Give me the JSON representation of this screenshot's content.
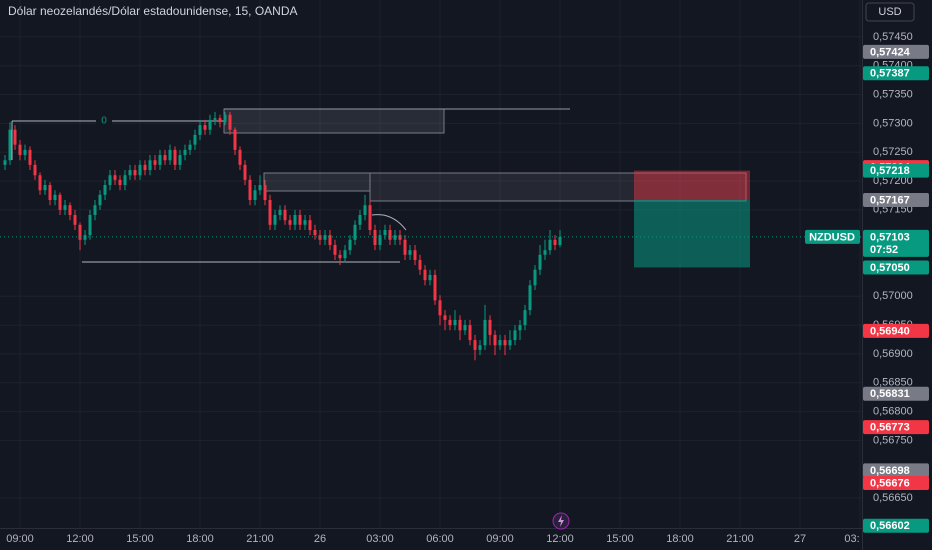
{
  "chart_data": {
    "type": "candlestick",
    "title": "Dólar neozelandés/Dólar estadounidense, 15, OANDA",
    "currency": "USD",
    "up_color": "#089981",
    "down_color": "#f23645",
    "grid": true,
    "ylim": [
      0.56598,
      0.57514
    ],
    "yticks": [
      {
        "value": 0.5745,
        "label": "0,57450"
      },
      {
        "value": 0.574,
        "label": "0,57400"
      },
      {
        "value": 0.5735,
        "label": "0,57350"
      },
      {
        "value": 0.573,
        "label": "0,57300"
      },
      {
        "value": 0.5725,
        "label": "0,57250"
      },
      {
        "value": 0.572,
        "label": "0,57200"
      },
      {
        "value": 0.5715,
        "label": "0,57150"
      },
      {
        "value": 0.57,
        "label": "0,57000"
      },
      {
        "value": 0.5695,
        "label": "0,56950"
      },
      {
        "value": 0.569,
        "label": "0,56900"
      },
      {
        "value": 0.5685,
        "label": "0,56850"
      },
      {
        "value": 0.568,
        "label": "0,56800"
      },
      {
        "value": 0.5675,
        "label": "0,56750"
      },
      {
        "value": 0.5665,
        "label": "0,56650"
      }
    ],
    "xlim": [
      -1,
      171.4
    ],
    "xticks": [
      {
        "value": 3,
        "label": "09:00"
      },
      {
        "value": 15,
        "label": "12:00"
      },
      {
        "value": 27,
        "label": "15:00"
      },
      {
        "value": 39,
        "label": "18:00"
      },
      {
        "value": 51,
        "label": "21:00"
      },
      {
        "value": 63,
        "label": "26"
      },
      {
        "value": 75,
        "label": "03:00"
      },
      {
        "value": 87,
        "label": "06:00"
      },
      {
        "value": 99,
        "label": "09:00"
      },
      {
        "value": 111,
        "label": "12:00"
      },
      {
        "value": 123,
        "label": "15:00"
      },
      {
        "value": 135,
        "label": "18:00"
      },
      {
        "value": 147,
        "label": "21:00"
      },
      {
        "value": 159,
        "label": "27"
      },
      {
        "value": 171,
        "label": "03:"
      }
    ],
    "candles": {
      "open": [
        0.57228,
        0.57236,
        0.57289,
        0.57263,
        0.57245,
        0.57254,
        0.57228,
        0.5721,
        0.57184,
        0.57193,
        0.57167,
        0.57176,
        0.5715,
        0.57158,
        0.57141,
        0.57124,
        0.57098,
        0.57106,
        0.57141,
        0.57158,
        0.57176,
        0.57193,
        0.5721,
        0.57202,
        0.57193,
        0.5721,
        0.57219,
        0.5721,
        0.57228,
        0.57219,
        0.57236,
        0.57228,
        0.57245,
        0.57236,
        0.57254,
        0.57228,
        0.57245,
        0.57254,
        0.57263,
        0.5728,
        0.57297,
        0.57289,
        0.57306,
        0.57309,
        0.57302,
        0.57315,
        0.57289,
        0.57254,
        0.57228,
        0.57202,
        0.57167,
        0.57184,
        0.57193,
        0.57167,
        0.57124,
        0.57141,
        0.5715,
        0.57132,
        0.57124,
        0.57141,
        0.57124,
        0.57132,
        0.57115,
        0.57106,
        0.57098,
        0.57106,
        0.57089,
        0.57072,
        0.57066,
        0.5708,
        0.57098,
        0.57124,
        0.57141,
        0.57158,
        0.57115,
        0.57089,
        0.57106,
        0.57115,
        0.57098,
        0.57106,
        0.57098,
        0.57072,
        0.5708,
        0.57063,
        0.57046,
        0.57028,
        0.57037,
        0.56993,
        0.56967,
        0.56959,
        0.5695,
        0.56959,
        0.56941,
        0.5695,
        0.56924,
        0.56907,
        0.56915,
        0.56959,
        0.56933,
        0.56915,
        0.56924,
        0.56915,
        0.56924,
        0.56941,
        0.5695,
        0.56976,
        0.57019,
        0.57046,
        0.57072,
        0.5708,
        0.57098,
        0.57089
      ],
      "high": [
        0.57245,
        0.57302,
        0.57297,
        0.57271,
        0.57263,
        0.5726,
        0.57236,
        0.57215,
        0.57202,
        0.57198,
        0.57184,
        0.5718,
        0.57167,
        0.57163,
        0.5715,
        0.57128,
        0.57115,
        0.5715,
        0.57167,
        0.57184,
        0.57202,
        0.57219,
        0.57219,
        0.5721,
        0.57219,
        0.57228,
        0.57228,
        0.57236,
        0.57236,
        0.57245,
        0.57245,
        0.57254,
        0.57254,
        0.57263,
        0.5726,
        0.57254,
        0.57263,
        0.57271,
        0.57289,
        0.57306,
        0.57306,
        0.57315,
        0.5732,
        0.57315,
        0.5732,
        0.5732,
        0.57293,
        0.5726,
        0.57236,
        0.5721,
        0.57193,
        0.5721,
        0.57202,
        0.57176,
        0.5715,
        0.57158,
        0.57158,
        0.57141,
        0.5715,
        0.5715,
        0.57141,
        0.57141,
        0.57124,
        0.57115,
        0.57115,
        0.57115,
        0.57098,
        0.5708,
        0.57089,
        0.57106,
        0.57132,
        0.5715,
        0.57176,
        0.57167,
        0.57124,
        0.57115,
        0.57124,
        0.57124,
        0.57115,
        0.57115,
        0.57106,
        0.57089,
        0.57089,
        0.57072,
        0.57054,
        0.57046,
        0.57046,
        0.57002,
        0.56976,
        0.56967,
        0.56976,
        0.56967,
        0.56959,
        0.56959,
        0.56933,
        0.56924,
        0.56985,
        0.56967,
        0.56941,
        0.56933,
        0.56933,
        0.56941,
        0.5695,
        0.56959,
        0.56985,
        0.57028,
        0.57054,
        0.57089,
        0.57098,
        0.57115,
        0.57106,
        0.57115
      ],
      "low": [
        0.57219,
        0.57228,
        0.57254,
        0.57236,
        0.57236,
        0.57219,
        0.57202,
        0.57176,
        0.57176,
        0.57158,
        0.57158,
        0.57141,
        0.57141,
        0.57132,
        0.57115,
        0.5708,
        0.57089,
        0.57098,
        0.57132,
        0.5715,
        0.57167,
        0.57184,
        0.57193,
        0.57184,
        0.57184,
        0.57202,
        0.57202,
        0.57202,
        0.5721,
        0.5721,
        0.57219,
        0.57219,
        0.57228,
        0.57228,
        0.57219,
        0.57219,
        0.57236,
        0.57245,
        0.57254,
        0.57271,
        0.5728,
        0.5728,
        0.57297,
        0.57293,
        0.57297,
        0.5728,
        0.57245,
        0.57219,
        0.57193,
        0.57158,
        0.57158,
        0.57176,
        0.57158,
        0.57115,
        0.57115,
        0.57132,
        0.57124,
        0.57115,
        0.57115,
        0.57115,
        0.57115,
        0.57106,
        0.57098,
        0.57089,
        0.57089,
        0.5708,
        0.57063,
        0.57054,
        0.57059,
        0.57072,
        0.57089,
        0.57115,
        0.57132,
        0.57106,
        0.5708,
        0.5708,
        0.57098,
        0.57089,
        0.57089,
        0.57089,
        0.57063,
        0.57063,
        0.57054,
        0.57037,
        0.57019,
        0.57019,
        0.56985,
        0.5695,
        0.56941,
        0.56941,
        0.56941,
        0.56924,
        0.56933,
        0.56915,
        0.56889,
        0.56898,
        0.56907,
        0.56915,
        0.56898,
        0.56907,
        0.56898,
        0.56907,
        0.56915,
        0.56924,
        0.56941,
        0.56967,
        0.57011,
        0.57037,
        0.57063,
        0.57072,
        0.5708,
        0.57085
      ],
      "close": [
        0.57236,
        0.57289,
        0.57263,
        0.57245,
        0.57254,
        0.57228,
        0.5721,
        0.57184,
        0.57193,
        0.57167,
        0.57176,
        0.5715,
        0.57158,
        0.57141,
        0.57124,
        0.57098,
        0.57106,
        0.57141,
        0.57158,
        0.57176,
        0.57193,
        0.5721,
        0.57202,
        0.57193,
        0.5721,
        0.57219,
        0.5721,
        0.57228,
        0.57219,
        0.57236,
        0.57228,
        0.57245,
        0.57236,
        0.57254,
        0.57228,
        0.57245,
        0.57254,
        0.57263,
        0.5728,
        0.57297,
        0.57289,
        0.57306,
        0.57309,
        0.57302,
        0.57315,
        0.57289,
        0.57254,
        0.57228,
        0.57202,
        0.57167,
        0.57184,
        0.57193,
        0.57167,
        0.57124,
        0.57141,
        0.5715,
        0.57132,
        0.57124,
        0.57141,
        0.57124,
        0.57132,
        0.57115,
        0.57106,
        0.57098,
        0.57106,
        0.57089,
        0.57072,
        0.57066,
        0.5708,
        0.57098,
        0.57124,
        0.57141,
        0.57158,
        0.57115,
        0.57089,
        0.57106,
        0.57115,
        0.57098,
        0.57106,
        0.57098,
        0.57072,
        0.5708,
        0.57063,
        0.57046,
        0.57028,
        0.57037,
        0.56993,
        0.56967,
        0.56959,
        0.5695,
        0.56959,
        0.56941,
        0.5695,
        0.56924,
        0.56907,
        0.56915,
        0.56959,
        0.56933,
        0.56915,
        0.56924,
        0.56915,
        0.56924,
        0.56941,
        0.5695,
        0.56976,
        0.57019,
        0.57046,
        0.57072,
        0.5708,
        0.57098,
        0.57089,
        0.57103
      ]
    },
    "last_price": {
      "symbol": "NZDUSD",
      "value": 0.57103,
      "label": "0,57103",
      "countdown": "07:52",
      "color": "#089981"
    },
    "price_tags": [
      {
        "value": 0.57424,
        "label": "0,57424",
        "color": "#787b86"
      },
      {
        "value": 0.57387,
        "label": "0,57387",
        "color": "#089981"
      },
      {
        "value": 0.57224,
        "label": "0,57224",
        "color": "#f23645"
      },
      {
        "value": 0.57218,
        "label": "0,57218",
        "color": "#089981"
      },
      {
        "value": 0.57167,
        "label": "0,57167",
        "color": "#787b86"
      },
      {
        "value": 0.5705,
        "label": "0,57050",
        "color": "#089981"
      },
      {
        "value": 0.5694,
        "label": "0,56940",
        "color": "#f23645"
      },
      {
        "value": 0.56831,
        "label": "0,56831",
        "color": "#787b86"
      },
      {
        "value": 0.56773,
        "label": "0,56773",
        "color": "#f23645"
      },
      {
        "value": 0.56698,
        "label": "0,56698",
        "color": "#787b86"
      },
      {
        "value": 0.56676,
        "label": "0,56676",
        "color": "#f23645"
      },
      {
        "value": 0.56602,
        "label": "0,56602",
        "color": "#089981"
      }
    ],
    "annotations": [
      "0"
    ]
  }
}
